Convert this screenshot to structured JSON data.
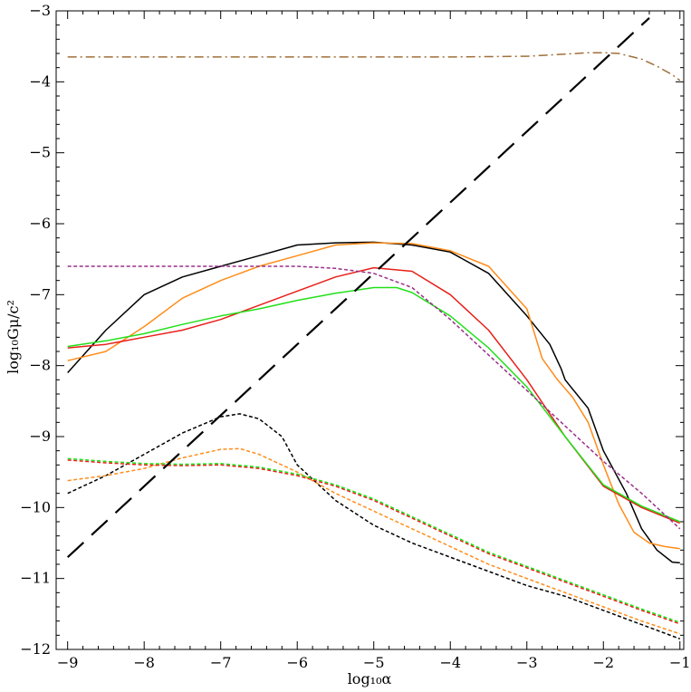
{
  "chart_data": {
    "type": "line",
    "title": "",
    "xlabel": "log₁₀α",
    "ylabel": "log₁₀Gμ/c²",
    "xlim": [
      -9.15,
      -0.95
    ],
    "ylim": [
      -12,
      -3
    ],
    "xticks": [
      -9,
      -8,
      -7,
      -6,
      -5,
      -4,
      -3,
      -2,
      -1
    ],
    "yticks": [
      -12,
      -11,
      -10,
      -9,
      -8,
      -7,
      -6,
      -5,
      -4,
      -3
    ],
    "xtick_labels": [
      "−9",
      "−8",
      "−7",
      "−6",
      "−5",
      "−4",
      "−3",
      "−2",
      "−1"
    ],
    "ytick_labels": [
      "−12",
      "−11",
      "−10",
      "−9",
      "−8",
      "−7",
      "−6",
      "−5",
      "−4",
      "−3"
    ],
    "grid": false,
    "series": [
      {
        "name": "black-solid",
        "color": "#000000",
        "dash": "solid",
        "x": [
          -9,
          -8.5,
          -8,
          -7.5,
          -7,
          -6.5,
          -6,
          -5.5,
          -5,
          -4.5,
          -4,
          -3.5,
          -3,
          -2.7,
          -2.55,
          -2.5,
          -2.2,
          -2,
          -1.7,
          -1.5,
          -1.3,
          -1.1,
          -1
        ],
        "y": [
          -8.1,
          -7.5,
          -7.0,
          -6.75,
          -6.6,
          -6.45,
          -6.3,
          -6.27,
          -6.26,
          -6.3,
          -6.4,
          -6.7,
          -7.3,
          -7.7,
          -8.05,
          -8.2,
          -8.6,
          -9.2,
          -9.8,
          -10.3,
          -10.6,
          -10.77,
          -10.78
        ]
      },
      {
        "name": "orange-solid",
        "color": "#ff8c1a",
        "dash": "solid",
        "x": [
          -9,
          -8.5,
          -8,
          -7.5,
          -7,
          -6.5,
          -6,
          -5.5,
          -5,
          -4.5,
          -4,
          -3.5,
          -3,
          -2.8,
          -2.6,
          -2.4,
          -2.2,
          -2,
          -1.8,
          -1.6,
          -1.4,
          -1.2,
          -1
        ],
        "y": [
          -7.93,
          -7.8,
          -7.45,
          -7.05,
          -6.8,
          -6.6,
          -6.45,
          -6.3,
          -6.27,
          -6.28,
          -6.38,
          -6.6,
          -7.2,
          -7.9,
          -8.2,
          -8.45,
          -8.8,
          -9.4,
          -9.95,
          -10.35,
          -10.5,
          -10.55,
          -10.58
        ]
      },
      {
        "name": "red-solid",
        "color": "#e8201a",
        "dash": "solid",
        "x": [
          -9,
          -8.5,
          -8,
          -7.5,
          -7,
          -6.5,
          -6,
          -5.5,
          -5,
          -4.5,
          -4,
          -3.5,
          -3,
          -2.5,
          -2,
          -1.5,
          -1
        ],
        "y": [
          -7.75,
          -7.7,
          -7.6,
          -7.5,
          -7.35,
          -7.15,
          -6.95,
          -6.75,
          -6.62,
          -6.67,
          -7.0,
          -7.5,
          -8.2,
          -9.0,
          -9.7,
          -10.0,
          -10.22
        ]
      },
      {
        "name": "green-solid",
        "color": "#22e01a",
        "dash": "solid",
        "x": [
          -9,
          -8.5,
          -8,
          -7.5,
          -7,
          -6.5,
          -6,
          -5.5,
          -5,
          -4.7,
          -4.5,
          -4,
          -3.5,
          -3,
          -2.5,
          -2,
          -1.5,
          -1
        ],
        "y": [
          -7.73,
          -7.65,
          -7.55,
          -7.42,
          -7.3,
          -7.2,
          -7.08,
          -6.98,
          -6.9,
          -6.9,
          -6.97,
          -7.3,
          -7.75,
          -8.3,
          -9.0,
          -9.68,
          -9.98,
          -10.2
        ]
      },
      {
        "name": "purple-dashed",
        "color": "#9a2f8a",
        "dash": "short",
        "x": [
          -9,
          -8,
          -7,
          -6,
          -5.5,
          -5,
          -4.5,
          -4,
          -3.5,
          -3,
          -2.5,
          -2,
          -1.5,
          -1
        ],
        "y": [
          -6.6,
          -6.6,
          -6.6,
          -6.6,
          -6.63,
          -6.7,
          -6.9,
          -7.35,
          -7.85,
          -8.35,
          -8.85,
          -9.35,
          -9.8,
          -10.3
        ]
      },
      {
        "name": "black-dashed",
        "color": "#000000",
        "dash": "short",
        "x": [
          -9,
          -8.5,
          -8,
          -7.5,
          -7,
          -6.75,
          -6.5,
          -6.2,
          -6,
          -5.5,
          -5,
          -4.5,
          -4,
          -3.5,
          -3,
          -2.5,
          -2,
          -1.5,
          -1
        ],
        "y": [
          -9.8,
          -9.55,
          -9.25,
          -8.95,
          -8.72,
          -8.68,
          -8.75,
          -9.0,
          -9.4,
          -9.9,
          -10.25,
          -10.5,
          -10.7,
          -10.9,
          -11.1,
          -11.25,
          -11.45,
          -11.65,
          -11.85
        ]
      },
      {
        "name": "orange-dashed",
        "color": "#ff8c1a",
        "dash": "short",
        "x": [
          -9,
          -8.5,
          -8,
          -7.5,
          -7,
          -6.75,
          -6.5,
          -6,
          -5.5,
          -5,
          -4.5,
          -4,
          -3.5,
          -3,
          -2.5,
          -2,
          -1.5,
          -1
        ],
        "y": [
          -9.62,
          -9.55,
          -9.45,
          -9.3,
          -9.18,
          -9.17,
          -9.25,
          -9.5,
          -9.8,
          -10.05,
          -10.3,
          -10.55,
          -10.8,
          -11.0,
          -11.2,
          -11.4,
          -11.6,
          -11.78
        ]
      },
      {
        "name": "red-dashed",
        "color": "#e8201a",
        "dash": "short",
        "x": [
          -9,
          -8.5,
          -8,
          -7.5,
          -7,
          -6.5,
          -6,
          -5.5,
          -5,
          -4.5,
          -4,
          -3.5,
          -3,
          -2.5,
          -2,
          -1.5,
          -1
        ],
        "y": [
          -9.33,
          -9.37,
          -9.4,
          -9.41,
          -9.4,
          -9.45,
          -9.55,
          -9.7,
          -9.9,
          -10.15,
          -10.4,
          -10.65,
          -10.85,
          -11.05,
          -11.25,
          -11.45,
          -11.64
        ]
      },
      {
        "name": "green-dashed",
        "color": "#22e01a",
        "dash": "short",
        "x": [
          -9,
          -8.5,
          -8,
          -7.5,
          -7,
          -6.5,
          -6,
          -5.5,
          -5,
          -4.5,
          -4,
          -3.5,
          -3,
          -2.5,
          -2,
          -1.5,
          -1
        ],
        "y": [
          -9.31,
          -9.35,
          -9.38,
          -9.39,
          -9.38,
          -9.43,
          -9.53,
          -9.68,
          -9.88,
          -10.13,
          -10.38,
          -10.63,
          -10.83,
          -11.03,
          -11.23,
          -11.43,
          -11.62
        ]
      },
      {
        "name": "brown-dashdot",
        "color": "#a0703a",
        "dash": "dashdot",
        "x": [
          -9,
          -8,
          -7,
          -6,
          -5,
          -4,
          -3,
          -2.5,
          -2.2,
          -2,
          -1.8,
          -1.5,
          -1.3,
          -1.1,
          -1
        ],
        "y": [
          -3.65,
          -3.65,
          -3.65,
          -3.65,
          -3.65,
          -3.65,
          -3.64,
          -3.61,
          -3.59,
          -3.59,
          -3.6,
          -3.68,
          -3.78,
          -3.9,
          -3.98
        ]
      },
      {
        "name": "black-long-dashed",
        "color": "#000000",
        "dash": "long",
        "x": [
          -9,
          -1.4
        ],
        "y": [
          -10.7,
          -3.1
        ]
      }
    ]
  }
}
